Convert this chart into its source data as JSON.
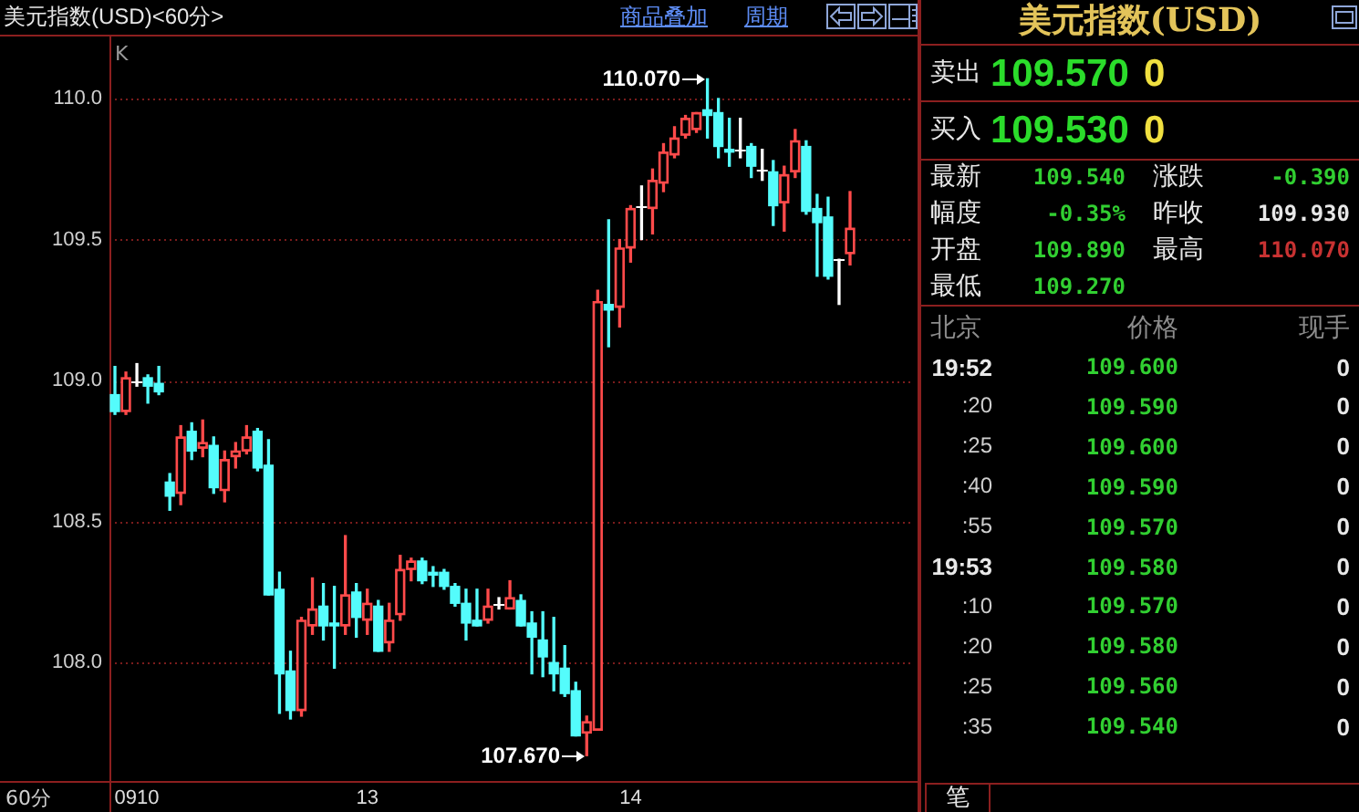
{
  "chart_data": [
    {
      "type": "candlestick",
      "title": "美元指数(USD)<60分>",
      "categories": [
        null,
        null,
        "0910",
        null,
        null,
        null,
        null,
        null,
        null,
        null,
        null,
        null,
        null,
        null,
        null,
        null,
        null,
        null,
        null,
        null,
        null,
        null,
        null,
        "13",
        null,
        null,
        null,
        null,
        null,
        null,
        null,
        null,
        null,
        null,
        null,
        null,
        null,
        null,
        null,
        null,
        null,
        null,
        null,
        null,
        null,
        null,
        null,
        "14",
        null,
        null,
        null,
        null,
        null,
        null,
        null,
        null,
        null,
        null,
        null,
        null,
        null,
        null,
        null,
        null,
        null,
        null,
        null,
        null
      ],
      "ohlc": [
        [
          108.95,
          109.05,
          108.88,
          108.89
        ],
        [
          108.89,
          109.03,
          108.88,
          109.01
        ],
        [
          109.0,
          109.06,
          108.98,
          109.0
        ],
        [
          109.01,
          109.02,
          108.92,
          108.98
        ],
        [
          108.99,
          109.05,
          108.95,
          108.96
        ],
        [
          108.64,
          108.67,
          108.54,
          108.59
        ],
        [
          108.6,
          108.84,
          108.56,
          108.8
        ],
        [
          108.82,
          108.85,
          108.72,
          108.75
        ],
        [
          108.76,
          108.86,
          108.73,
          108.78
        ],
        [
          108.77,
          108.8,
          108.6,
          108.62
        ],
        [
          108.61,
          108.75,
          108.57,
          108.72
        ],
        [
          108.73,
          108.78,
          108.69,
          108.75
        ],
        [
          108.75,
          108.84,
          108.74,
          108.8
        ],
        [
          108.82,
          108.83,
          108.68,
          108.69
        ],
        [
          108.7,
          108.79,
          108.24,
          108.24
        ],
        [
          108.26,
          108.32,
          107.82,
          107.96
        ],
        [
          107.97,
          108.04,
          107.8,
          107.83
        ],
        [
          107.83,
          108.16,
          107.81,
          108.15
        ],
        [
          108.13,
          108.3,
          108.1,
          108.19
        ],
        [
          108.2,
          108.28,
          108.08,
          108.13
        ],
        [
          108.14,
          108.27,
          107.98,
          108.13
        ],
        [
          108.13,
          108.45,
          108.1,
          108.24
        ],
        [
          108.25,
          108.28,
          108.09,
          108.16
        ],
        [
          108.15,
          108.26,
          108.1,
          108.21
        ],
        [
          108.2,
          108.22,
          108.04,
          108.04
        ],
        [
          108.07,
          108.21,
          108.04,
          108.15
        ],
        [
          108.17,
          108.38,
          108.15,
          108.33
        ],
        [
          108.33,
          108.37,
          108.29,
          108.36
        ],
        [
          108.36,
          108.37,
          108.28,
          108.29
        ],
        [
          108.32,
          108.34,
          108.27,
          108.31
        ],
        [
          108.32,
          108.33,
          108.26,
          108.27
        ],
        [
          108.27,
          108.28,
          108.2,
          108.21
        ],
        [
          108.21,
          108.26,
          108.08,
          108.14
        ],
        [
          108.15,
          108.26,
          108.13,
          108.13
        ],
        [
          108.15,
          108.26,
          108.14,
          108.2
        ],
        [
          108.21,
          108.23,
          108.19,
          108.21
        ],
        [
          108.19,
          108.29,
          108.19,
          108.23
        ],
        [
          108.22,
          108.24,
          108.13,
          108.13
        ],
        [
          108.14,
          108.18,
          107.96,
          108.09
        ],
        [
          108.08,
          108.18,
          107.95,
          108.02
        ],
        [
          108.0,
          108.16,
          107.9,
          107.96
        ],
        [
          107.98,
          108.06,
          107.88,
          107.89
        ],
        [
          107.9,
          107.93,
          107.74,
          107.74
        ],
        [
          107.75,
          107.81,
          107.67,
          107.79
        ],
        [
          107.76,
          109.32,
          107.76,
          109.28
        ],
        [
          109.27,
          109.57,
          109.12,
          109.25
        ],
        [
          109.26,
          109.5,
          109.19,
          109.47
        ],
        [
          109.47,
          109.62,
          109.42,
          109.61
        ],
        [
          109.62,
          109.69,
          109.5,
          109.62
        ],
        [
          109.61,
          109.75,
          109.52,
          109.71
        ],
        [
          109.7,
          109.84,
          109.67,
          109.81
        ],
        [
          109.8,
          109.9,
          109.79,
          109.86
        ],
        [
          109.87,
          109.94,
          109.86,
          109.93
        ],
        [
          109.89,
          109.95,
          109.88,
          109.95
        ],
        [
          109.96,
          110.07,
          109.86,
          109.94
        ],
        [
          109.95,
          110.0,
          109.79,
          109.83
        ],
        [
          109.82,
          109.93,
          109.76,
          109.81
        ],
        [
          109.82,
          109.93,
          109.79,
          109.82
        ],
        [
          109.83,
          109.84,
          109.72,
          109.76
        ],
        [
          109.75,
          109.82,
          109.71,
          109.75
        ],
        [
          109.74,
          109.78,
          109.55,
          109.62
        ],
        [
          109.63,
          109.76,
          109.53,
          109.73
        ],
        [
          109.74,
          109.89,
          109.72,
          109.85
        ],
        [
          109.83,
          109.85,
          109.59,
          109.6
        ],
        [
          109.61,
          109.66,
          109.37,
          109.56
        ],
        [
          109.58,
          109.65,
          109.36,
          109.37
        ],
        [
          109.43,
          109.43,
          109.27,
          109.43
        ],
        [
          109.45,
          109.67,
          109.41,
          109.54
        ]
      ],
      "colors": [
        "#54fcfc",
        "#ff4a4a",
        "#ffffff",
        "#54fcfc",
        "#54fcfc",
        "#54fcfc",
        "#ff4a4a",
        "#54fcfc",
        "#ff4a4a",
        "#54fcfc",
        "#ff4a4a",
        "#ff4a4a",
        "#ff4a4a",
        "#54fcfc",
        "#54fcfc",
        "#54fcfc",
        "#54fcfc",
        "#ff4a4a",
        "#ff4a4a",
        "#54fcfc",
        "#54fcfc",
        "#ff4a4a",
        "#54fcfc",
        "#ff4a4a",
        "#54fcfc",
        "#ff4a4a",
        "#ff4a4a",
        "#ff4a4a",
        "#54fcfc",
        "#54fcfc",
        "#54fcfc",
        "#54fcfc",
        "#54fcfc",
        "#54fcfc",
        "#ff4a4a",
        "#ffffff",
        "#ff4a4a",
        "#54fcfc",
        "#54fcfc",
        "#54fcfc",
        "#54fcfc",
        "#54fcfc",
        "#54fcfc",
        "#ff4a4a",
        "#ff4a4a",
        "#54fcfc",
        "#ff4a4a",
        "#ff4a4a",
        "#ffffff",
        "#ff4a4a",
        "#ff4a4a",
        "#ff4a4a",
        "#ff4a4a",
        "#ff4a4a",
        "#54fcfc",
        "#54fcfc",
        "#54fcfc",
        "#ffffff",
        "#54fcfc",
        "#ffffff",
        "#54fcfc",
        "#ff4a4a",
        "#ff4a4a",
        "#54fcfc",
        "#54fcfc",
        "#54fcfc",
        "#ffffff",
        "#ff4a4a"
      ],
      "ylim": [
        107.58,
        110.22
      ],
      "yticks": [
        {
          "value": 108,
          "label": "108.0"
        },
        108.5,
        {
          "value": 109,
          "label": "109.0"
        },
        109.5,
        {
          "value": 110,
          "label": "110.0"
        }
      ],
      "grid": "y",
      "annotations": [
        "110.070",
        "107.670",
        "K",
        "60分",
        "商品叠加",
        "周期"
      ]
    },
    {
      "type": "other",
      "title": "美元指数(USD)",
      "annotations": [
        "卖出",
        "109.570",
        "0",
        "买入",
        "109.530",
        "0",
        "最新",
        "109.540",
        "涨跌",
        "-0.390",
        "幅度",
        "-0.35%",
        "昨收",
        "109.930",
        "开盘",
        "109.890",
        "最高",
        "110.070",
        "最低",
        "109.270",
        "北京",
        "价格",
        "现手",
        "19:52",
        "109.600",
        "0",
        ":20",
        "109.590",
        "0",
        ":25",
        "109.600",
        "0",
        ":40",
        "109.590",
        "0",
        ":55",
        "109.570",
        "0",
        "19:53",
        "109.580",
        "0",
        ":10",
        "109.570",
        "0",
        ":20",
        "109.580",
        "0",
        ":25",
        "109.560",
        "0",
        ":35",
        "109.540",
        "0",
        "笔"
      ]
    }
  ]
}
